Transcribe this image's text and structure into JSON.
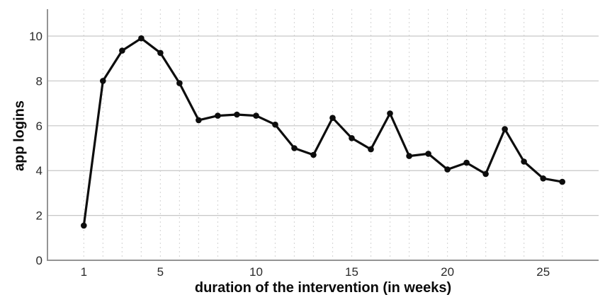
{
  "chart_data": {
    "type": "line",
    "title": "",
    "xlabel": "duration of the intervention (in weeks)",
    "ylabel": "app logins",
    "x": [
      1,
      2,
      3,
      4,
      5,
      6,
      7,
      8,
      9,
      10,
      11,
      12,
      13,
      14,
      15,
      16,
      17,
      18,
      19,
      20,
      21,
      22,
      23,
      24,
      25,
      26
    ],
    "series": [
      {
        "name": "app logins",
        "values": [
          1.55,
          8.0,
          9.35,
          9.9,
          9.25,
          7.9,
          6.25,
          6.45,
          6.5,
          6.45,
          6.05,
          5.0,
          4.7,
          6.35,
          5.45,
          4.95,
          6.55,
          4.65,
          4.75,
          4.05,
          4.35,
          3.85,
          5.85,
          4.4,
          3.65,
          3.5
        ]
      }
    ],
    "x_ticks": [
      1,
      5,
      10,
      15,
      20,
      25
    ],
    "y_ticks": [
      0,
      2,
      4,
      6,
      8,
      10
    ],
    "xlim": [
      -0.9,
      27.9
    ],
    "ylim": [
      0,
      11.2
    ],
    "grid": {
      "horizontal": "solid",
      "vertical": "dashed",
      "vertical_every_x": 1
    },
    "legend_position": "none",
    "marker": "circle"
  },
  "styles": {
    "background": "#ffffff",
    "line_color": "#0d0d0d",
    "marker_color": "#0d0d0d",
    "h_grid_color": "#c6c6c6",
    "v_grid_color": "#d9d9d9",
    "axis_color": "#949494",
    "tick_label_color": "#2a2a2a",
    "title_color": "#0a0a0a"
  }
}
